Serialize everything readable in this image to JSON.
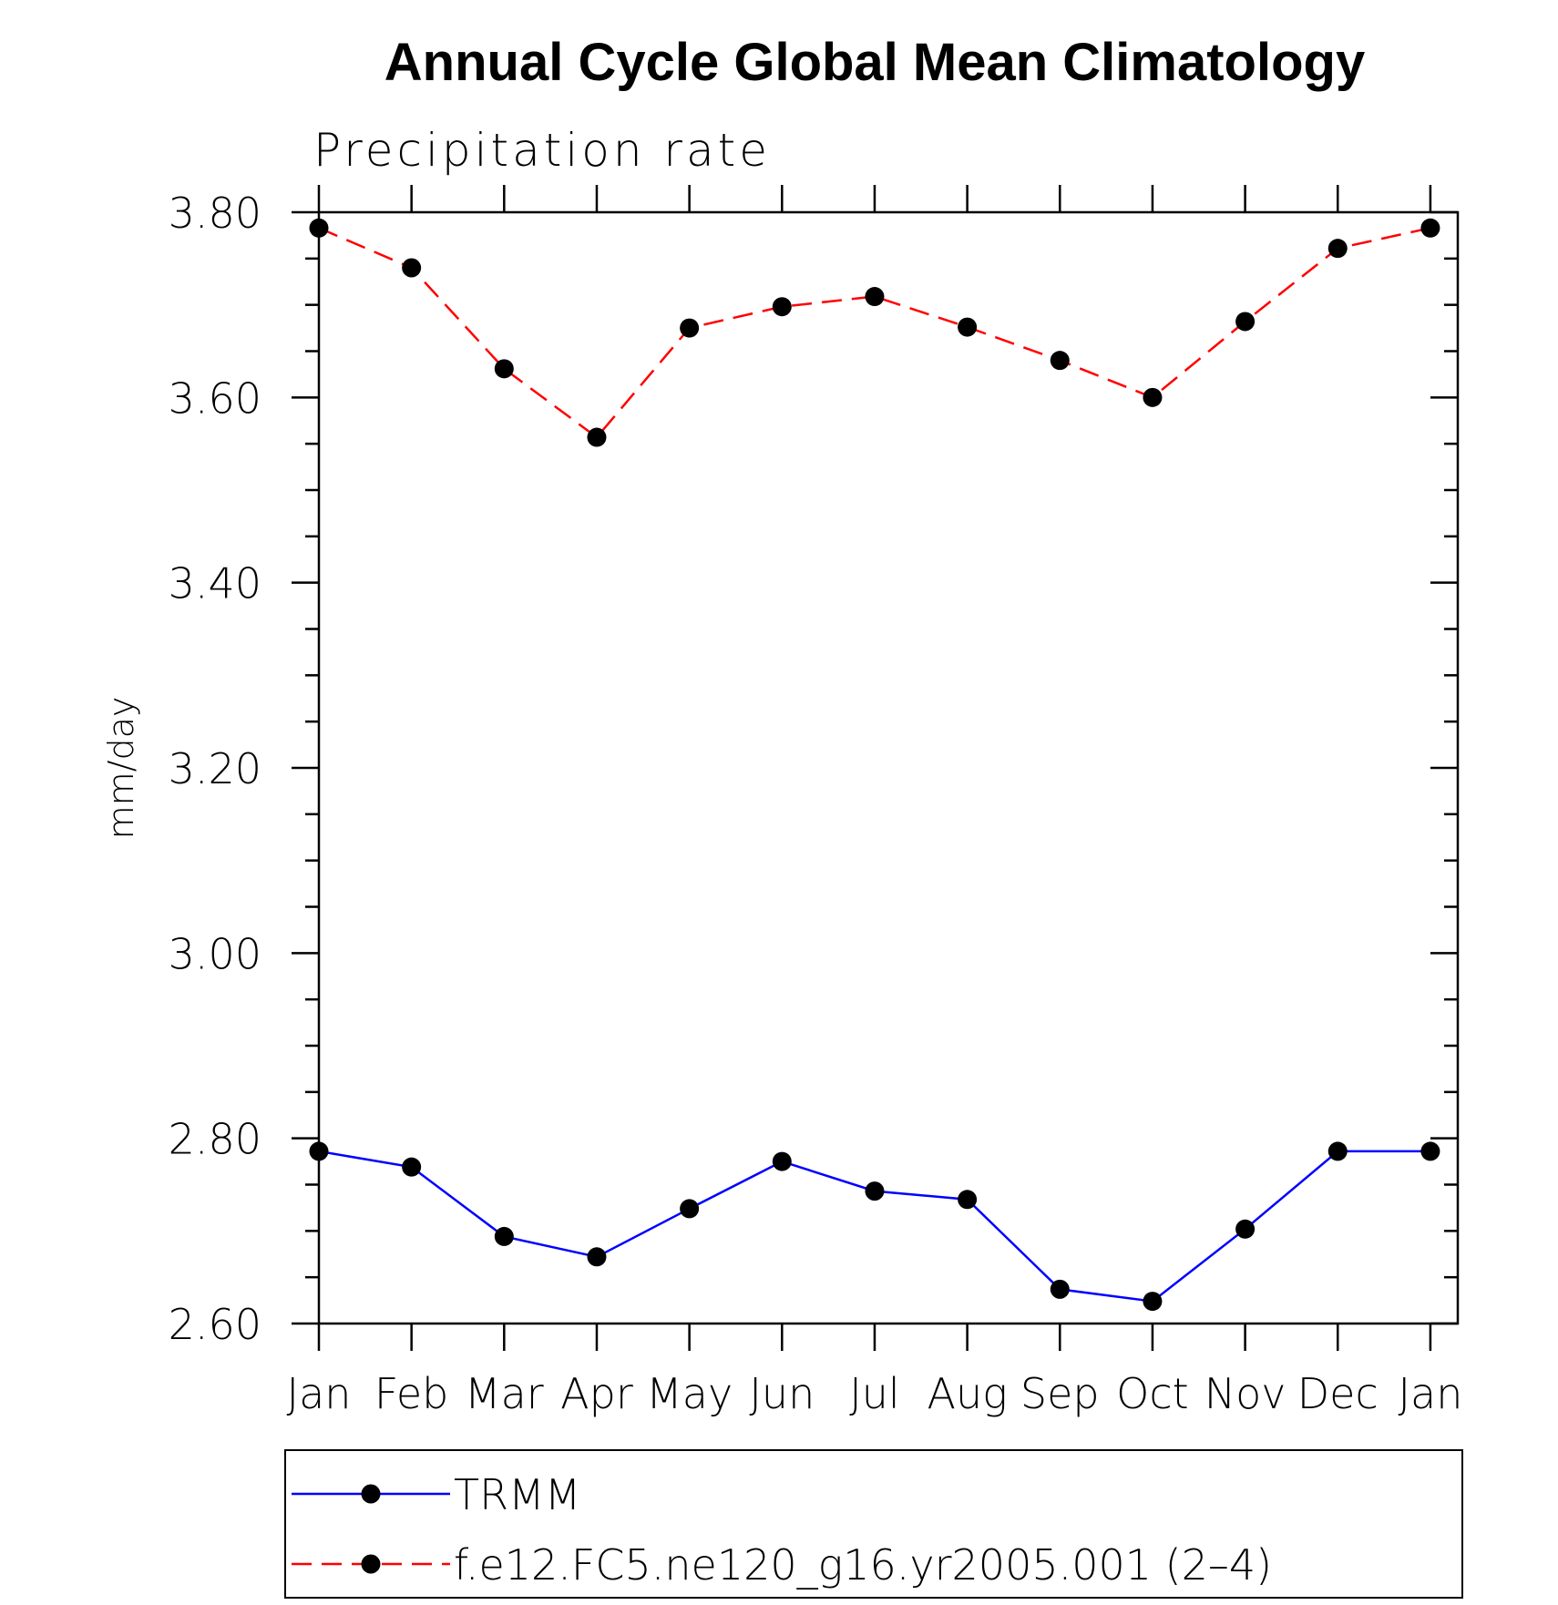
{
  "chart_data": {
    "type": "line",
    "title": "Annual Cycle Global Mean Climatology",
    "subtitle": "Precipitation rate",
    "xlabel": "",
    "ylabel": "mm/day",
    "ylim": [
      2.6,
      3.8
    ],
    "yticks": [
      "2.60",
      "2.80",
      "3.00",
      "3.20",
      "3.40",
      "3.60",
      "3.80"
    ],
    "categories": [
      "Jan",
      "Feb",
      "Mar",
      "Apr",
      "May",
      "Jun",
      "Jul",
      "Aug",
      "Sep",
      "Oct",
      "Nov",
      "Dec",
      "Jan"
    ],
    "grid": false,
    "legend_position": "bottom",
    "series": [
      {
        "name": "TRMM",
        "color": "#0000ff",
        "dash": "solid",
        "marker": "filled-circle",
        "values": [
          2.786,
          2.769,
          2.694,
          2.672,
          2.724,
          2.775,
          2.743,
          2.734,
          2.637,
          2.624,
          2.702,
          2.786,
          2.786
        ]
      },
      {
        "name": "f.e12.FC5.ne120_g16.yr2005.001 (2–4)",
        "color": "#ff0000",
        "dash": "dashed",
        "marker": "filled-circle",
        "values": [
          3.783,
          3.74,
          3.631,
          3.557,
          3.675,
          3.698,
          3.709,
          3.676,
          3.64,
          3.6,
          3.682,
          3.761,
          3.783
        ]
      }
    ]
  }
}
